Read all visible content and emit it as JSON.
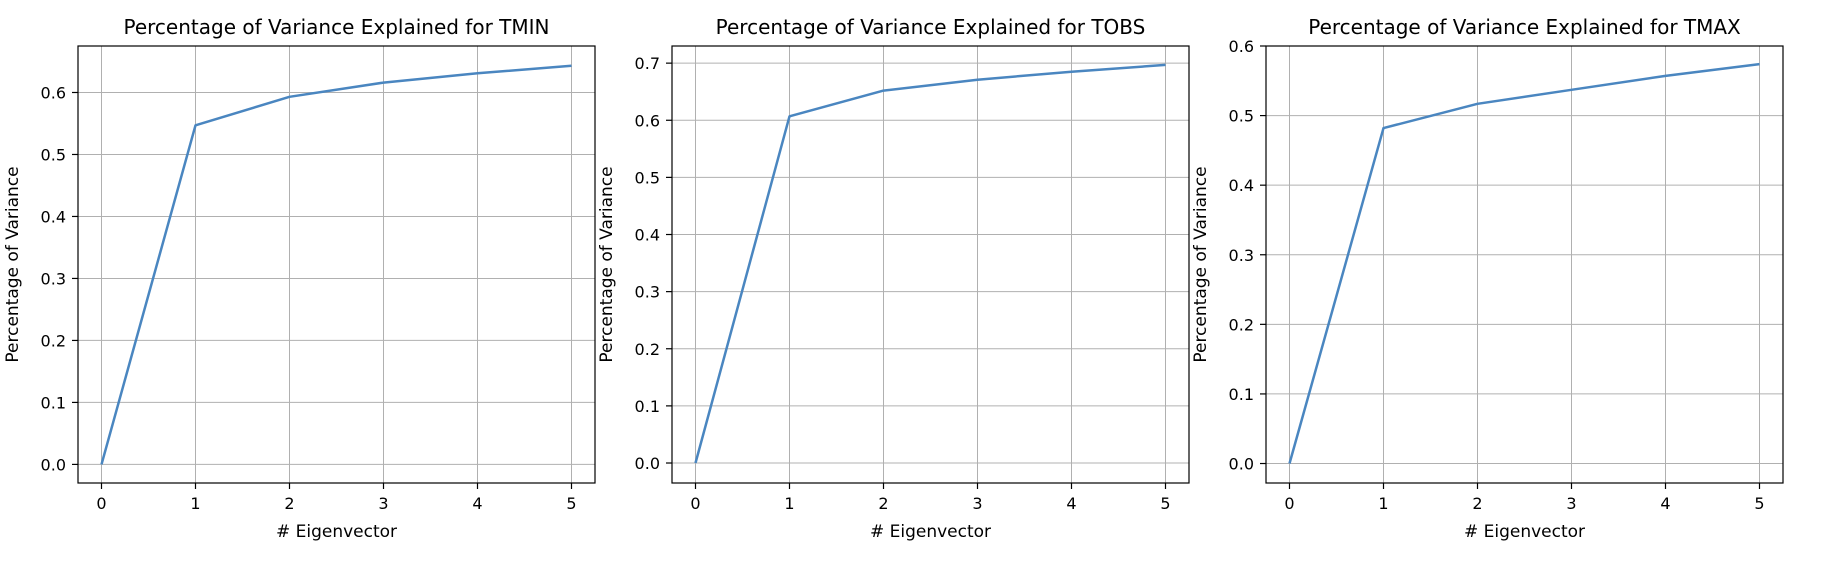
{
  "colors": {
    "series": "#4a86c0",
    "grid": "#b0b0b0",
    "frame": "#000000"
  },
  "chart_data": [
    {
      "type": "line",
      "title": "Percentage of Variance Explained for TMIN",
      "xlabel": "# Eigenvector",
      "ylabel": "Percentage of Variance",
      "xlim": [
        -0.25,
        5.25
      ],
      "ylim": [
        -0.03,
        0.675
      ],
      "xticks": [
        0,
        1,
        2,
        3,
        4,
        5
      ],
      "xtick_labels": [
        "0",
        "1",
        "2",
        "3",
        "4",
        "5"
      ],
      "yticks": [
        0.0,
        0.1,
        0.2,
        0.3,
        0.4,
        0.5,
        0.6
      ],
      "ytick_labels": [
        "0.0",
        "0.1",
        "0.2",
        "0.3",
        "0.4",
        "0.5",
        "0.6"
      ],
      "grid": true,
      "series": [
        {
          "x": [
            0,
            1,
            2,
            3,
            4,
            5
          ],
          "values": [
            0.0,
            0.547,
            0.593,
            0.616,
            0.631,
            0.643
          ]
        }
      ]
    },
    {
      "type": "line",
      "title": "Percentage of Variance Explained for TOBS",
      "xlabel": "# Eigenvector",
      "ylabel": "Percentage of Variance",
      "xlim": [
        -0.25,
        5.25
      ],
      "ylim": [
        -0.035,
        0.73
      ],
      "xticks": [
        0,
        1,
        2,
        3,
        4,
        5
      ],
      "xtick_labels": [
        "0",
        "1",
        "2",
        "3",
        "4",
        "5"
      ],
      "yticks": [
        0.0,
        0.1,
        0.2,
        0.3,
        0.4,
        0.5,
        0.6,
        0.7
      ],
      "ytick_labels": [
        "0.0",
        "0.1",
        "0.2",
        "0.3",
        "0.4",
        "0.5",
        "0.6",
        "0.7"
      ],
      "grid": true,
      "series": [
        {
          "x": [
            0,
            1,
            2,
            3,
            4,
            5
          ],
          "values": [
            0.0,
            0.607,
            0.652,
            0.671,
            0.685,
            0.697
          ]
        }
      ]
    },
    {
      "type": "line",
      "title": "Percentage of Variance Explained for TMAX",
      "xlabel": "# Eigenvector",
      "ylabel": "Percentage of Variance",
      "xlim": [
        -0.25,
        5.25
      ],
      "ylim": [
        -0.028,
        0.6
      ],
      "xticks": [
        0,
        1,
        2,
        3,
        4,
        5
      ],
      "xtick_labels": [
        "0",
        "1",
        "2",
        "3",
        "4",
        "5"
      ],
      "yticks": [
        0.0,
        0.1,
        0.2,
        0.3,
        0.4,
        0.5,
        0.6
      ],
      "ytick_labels": [
        "0.0",
        "0.1",
        "0.2",
        "0.3",
        "0.4",
        "0.5",
        "0.6"
      ],
      "grid": true,
      "series": [
        {
          "x": [
            0,
            1,
            2,
            3,
            4,
            5
          ],
          "values": [
            0.0,
            0.482,
            0.517,
            0.537,
            0.557,
            0.574
          ]
        }
      ]
    }
  ]
}
